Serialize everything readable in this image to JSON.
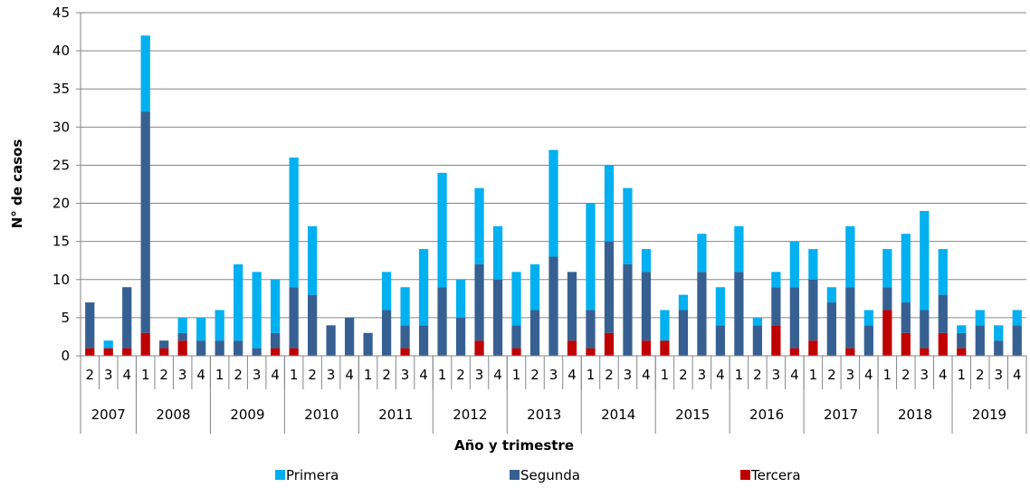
{
  "chart_data": {
    "type": "bar",
    "stacked": true,
    "xlabel": "Año y trimestre",
    "ylabel": "N° de casos",
    "ylim": [
      0,
      45
    ],
    "yticks": [
      0,
      5,
      10,
      15,
      20,
      25,
      30,
      35,
      40,
      45
    ],
    "grid": "horizontal",
    "legend_position": "bottom",
    "categories": [
      "2",
      "3",
      "4",
      "1",
      "2",
      "3",
      "4",
      "1",
      "2",
      "3",
      "4",
      "1",
      "2",
      "3",
      "4",
      "1",
      "2",
      "3",
      "4",
      "1",
      "2",
      "3",
      "4",
      "1",
      "2",
      "3",
      "4",
      "1",
      "2",
      "3",
      "4",
      "1",
      "2",
      "3",
      "4",
      "1",
      "2",
      "3",
      "4",
      "1",
      "2",
      "3",
      "4",
      "1",
      "2",
      "3",
      "4",
      "1",
      "2",
      "3",
      "4"
    ],
    "year_groups": [
      {
        "label": "2007",
        "count": 3
      },
      {
        "label": "2008",
        "count": 4
      },
      {
        "label": "2009",
        "count": 4
      },
      {
        "label": "2010",
        "count": 4
      },
      {
        "label": "2011",
        "count": 4
      },
      {
        "label": "2012",
        "count": 4
      },
      {
        "label": "2013",
        "count": 4
      },
      {
        "label": "2014",
        "count": 4
      },
      {
        "label": "2015",
        "count": 4
      },
      {
        "label": "2016",
        "count": 4
      },
      {
        "label": "2017",
        "count": 4
      },
      {
        "label": "2018",
        "count": 4
      },
      {
        "label": "2019",
        "count": 4
      }
    ],
    "series": [
      {
        "name": "Tercera",
        "color": "#c00000",
        "values": [
          1,
          1,
          1,
          3,
          1,
          2,
          0,
          0,
          0,
          0,
          1,
          1,
          0,
          0,
          0,
          0,
          0,
          1,
          0,
          0,
          0,
          2,
          0,
          1,
          0,
          0,
          2,
          1,
          3,
          0,
          2,
          2,
          0,
          0,
          0,
          0,
          0,
          4,
          1,
          2,
          0,
          1,
          0,
          6,
          3,
          1,
          3,
          1,
          0,
          0,
          0
        ]
      },
      {
        "name": "Segunda",
        "color": "#376092",
        "values": [
          6,
          0,
          8,
          29,
          1,
          1,
          2,
          2,
          2,
          1,
          2,
          8,
          8,
          4,
          5,
          3,
          6,
          3,
          4,
          9,
          5,
          10,
          10,
          3,
          6,
          13,
          9,
          5,
          12,
          12,
          9,
          0,
          6,
          11,
          4,
          11,
          4,
          5,
          8,
          8,
          7,
          8,
          4,
          3,
          4,
          5,
          5,
          2,
          4,
          2,
          4
        ]
      },
      {
        "name": "Primera",
        "color": "#00b0f0",
        "values": [
          0,
          1,
          0,
          10,
          0,
          2,
          3,
          4,
          10,
          10,
          7,
          17,
          9,
          0,
          0,
          0,
          5,
          5,
          10,
          15,
          5,
          10,
          7,
          7,
          6,
          14,
          0,
          14,
          10,
          10,
          3,
          4,
          2,
          5,
          5,
          6,
          1,
          2,
          6,
          4,
          2,
          8,
          2,
          5,
          9,
          13,
          6,
          1,
          2,
          2,
          2
        ]
      }
    ]
  }
}
